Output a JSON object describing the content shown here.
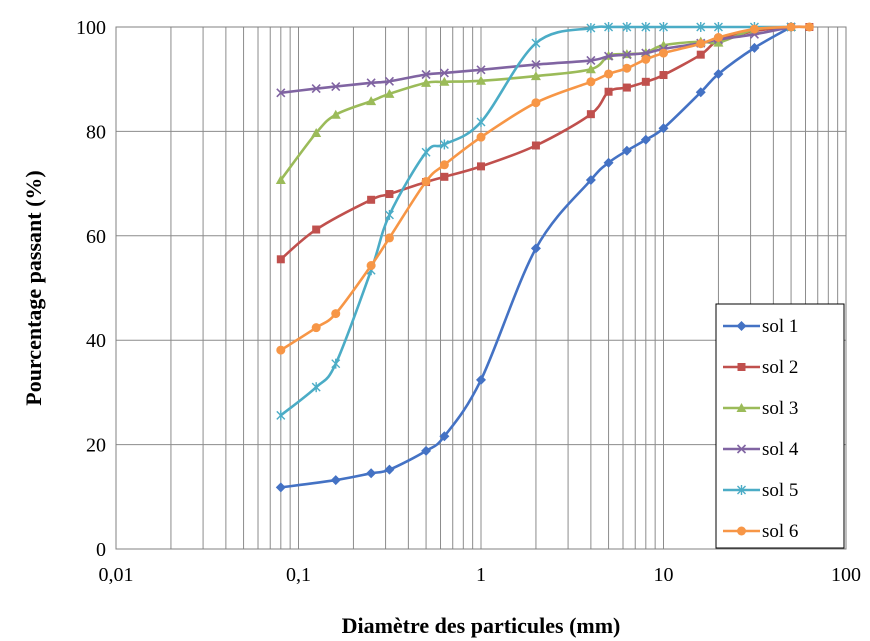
{
  "chart_data": {
    "type": "line",
    "xscale": "log",
    "xlim": [
      0.01,
      100
    ],
    "ylim": [
      0,
      100
    ],
    "xticks": [
      0.01,
      0.1,
      1,
      10,
      100
    ],
    "xtick_labels": [
      "0,01",
      "0,1",
      "1",
      "10",
      "100"
    ],
    "yticks": [
      0,
      20,
      40,
      60,
      80,
      100
    ],
    "ytick_labels": [
      "0",
      "20",
      "40",
      "60",
      "80",
      "100"
    ],
    "xlabel": "Diamètre des particules (mm)",
    "ylabel": "Pourcentage passant  (%)",
    "grid": true,
    "legend_position": "bottom-right",
    "series": [
      {
        "name": "sol 1",
        "color": "#4472C4",
        "marker": "diamond",
        "x": [
          0.08,
          0.16,
          0.25,
          0.315,
          0.5,
          0.63,
          1,
          2,
          4,
          5,
          6.3,
          8,
          10,
          16,
          20,
          31.5,
          50
        ],
        "y": [
          11.8,
          13.2,
          14.5,
          15.2,
          18.8,
          21.6,
          32.4,
          57.6,
          70.7,
          74.0,
          76.3,
          78.4,
          80.6,
          87.5,
          91.0,
          96.0,
          100
        ]
      },
      {
        "name": "sol 2",
        "color": "#C0504D",
        "marker": "square",
        "x": [
          0.08,
          0.125,
          0.25,
          0.315,
          0.5,
          0.63,
          1,
          2,
          4,
          5,
          6.3,
          8,
          10,
          16,
          20,
          31.5,
          50,
          63
        ],
        "y": [
          55.5,
          61.2,
          66.9,
          68.0,
          70.3,
          71.3,
          73.3,
          77.3,
          83.3,
          87.6,
          88.4,
          89.5,
          90.8,
          94.7,
          97.4,
          99.2,
          100,
          100
        ]
      },
      {
        "name": "sol 3",
        "color": "#9BBB59",
        "marker": "triangle",
        "x": [
          0.08,
          0.125,
          0.16,
          0.25,
          0.315,
          0.5,
          0.63,
          1,
          2,
          4,
          5,
          6.3,
          8,
          10,
          16,
          20,
          31.5,
          50
        ],
        "y": [
          70.7,
          79.7,
          83.2,
          85.8,
          87.2,
          89.3,
          89.5,
          89.7,
          90.6,
          91.9,
          94.5,
          94.8,
          95.1,
          96.5,
          97.2,
          97.0,
          99.5,
          100
        ]
      },
      {
        "name": "sol 4",
        "color": "#8064A2",
        "marker": "x",
        "x": [
          0.08,
          0.125,
          0.16,
          0.25,
          0.315,
          0.5,
          0.63,
          1,
          2,
          4,
          5,
          6.3,
          8,
          10,
          16,
          20,
          31.5,
          50
        ],
        "y": [
          87.4,
          88.2,
          88.6,
          89.3,
          89.6,
          90.9,
          91.2,
          91.8,
          92.8,
          93.6,
          94.4,
          94.7,
          95.0,
          95.8,
          96.9,
          97.6,
          98.6,
          100
        ]
      },
      {
        "name": "sol 5",
        "color": "#4BACC6",
        "marker": "asterisk",
        "x": [
          0.08,
          0.125,
          0.16,
          0.25,
          0.315,
          0.5,
          0.63,
          1,
          2,
          4,
          5,
          6.3,
          8,
          10,
          16,
          20,
          31.5,
          50
        ],
        "y": [
          25.6,
          31.0,
          35.5,
          53.4,
          64.0,
          76.0,
          77.5,
          81.8,
          96.9,
          99.8,
          100,
          100,
          100,
          100,
          100,
          100,
          100,
          100
        ]
      },
      {
        "name": "sol 6",
        "color": "#F79646",
        "marker": "circle",
        "x": [
          0.08,
          0.125,
          0.16,
          0.25,
          0.315,
          0.5,
          0.63,
          1,
          2,
          4,
          5,
          6.3,
          8,
          10,
          16,
          20,
          31.5,
          50,
          63
        ],
        "y": [
          38.1,
          42.4,
          45.1,
          54.3,
          59.6,
          70.4,
          73.6,
          78.9,
          85.5,
          89.5,
          91.0,
          92.1,
          93.8,
          95.0,
          96.8,
          98.0,
          99.6,
          100,
          100
        ]
      }
    ]
  }
}
